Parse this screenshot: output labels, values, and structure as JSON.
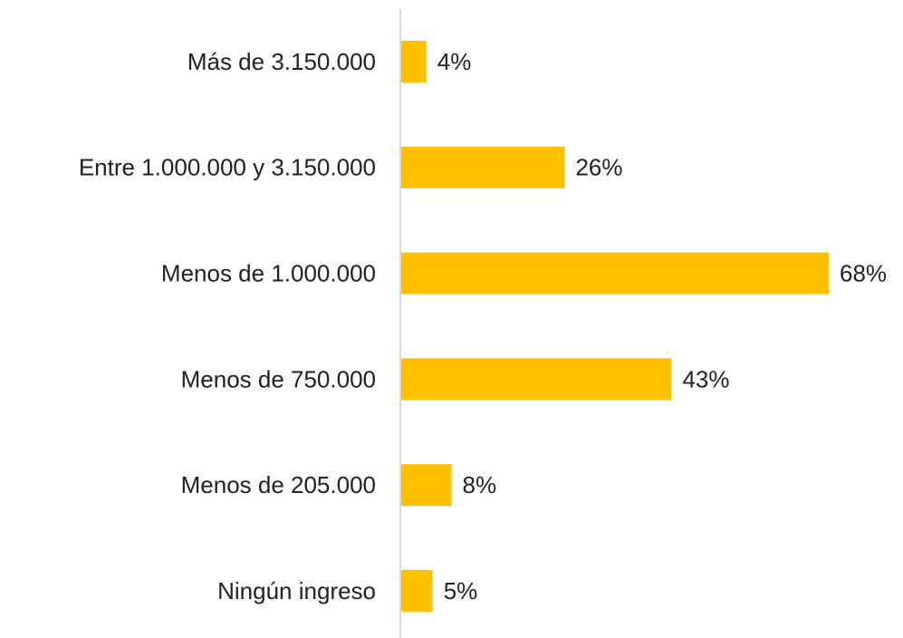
{
  "chart_data": {
    "type": "bar",
    "orientation": "horizontal",
    "categories": [
      "Más de 3.150.000",
      "Entre 1.000.000 y 3.150.000",
      "Menos de 1.000.000",
      "Menos de 750.000",
      "Menos de 205.000",
      "Ningún ingreso"
    ],
    "values": [
      4,
      26,
      68,
      43,
      8,
      5
    ],
    "value_labels": [
      "4%",
      "26%",
      "68%",
      "43%",
      "8%",
      "5%"
    ],
    "color": "#ffc000"
  }
}
